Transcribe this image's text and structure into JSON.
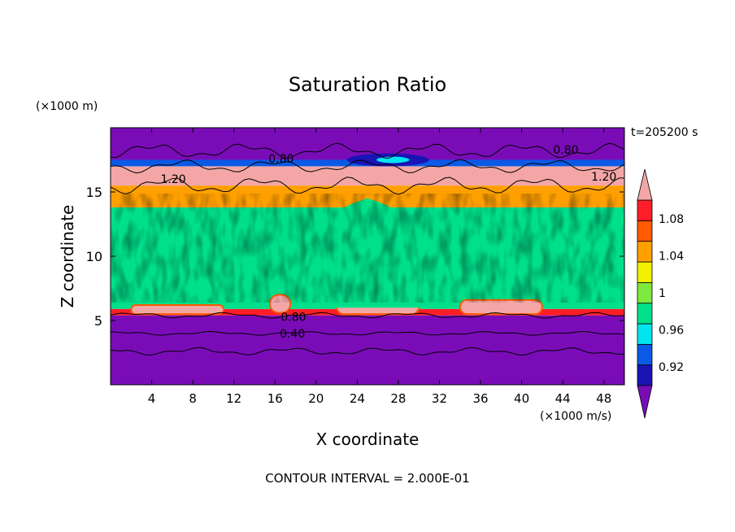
{
  "chart_data": {
    "type": "heatmap",
    "title": "Saturation Ratio",
    "xlabel": "X coordinate",
    "ylabel": "Z coordinate",
    "x_unit": "(×1000 m/s)",
    "y_unit": "(×1000 m)",
    "time_label": "t=205200 s",
    "footer": "CONTOUR INTERVAL = 2.000E-01",
    "xlim": [
      0,
      50
    ],
    "ylim": [
      0,
      20
    ],
    "x_ticks": [
      4,
      8,
      12,
      16,
      20,
      24,
      28,
      32,
      36,
      40,
      44,
      48
    ],
    "y_ticks": [
      5,
      10,
      15
    ],
    "colorbar": {
      "bounds": [
        0.9,
        0.92,
        0.94,
        0.96,
        0.98,
        1.0,
        1.02,
        1.04,
        1.06,
        1.08,
        1.1
      ],
      "colors": [
        "#7a0cb8",
        "#1a14b4",
        "#0a5ae6",
        "#00e6f0",
        "#00e08a",
        "#7ee83c",
        "#f2f200",
        "#ffa000",
        "#ff5a00",
        "#ff1e28",
        "#f4a6a6"
      ],
      "tick_labels": [
        {
          "value": 0.92,
          "label": "0.92"
        },
        {
          "value": 0.96,
          "label": "0.96"
        },
        {
          "value": 1.0,
          "label": "1"
        },
        {
          "value": 1.04,
          "label": "1.04"
        },
        {
          "value": 1.08,
          "label": "1.08"
        }
      ]
    },
    "contour_labels": [
      {
        "x": 16.6,
        "z": 17.6,
        "text": "0.80"
      },
      {
        "x": 44.3,
        "z": 18.3,
        "text": "0.80"
      },
      {
        "x": 6.1,
        "z": 16.0,
        "text": "1.20"
      },
      {
        "x": 48.0,
        "z": 16.2,
        "text": "1.20"
      },
      {
        "x": 17.8,
        "z": 5.3,
        "text": "0.80"
      },
      {
        "x": 17.7,
        "z": 4.0,
        "text": "0.40"
      }
    ],
    "bands": [
      {
        "z": [
          0,
          5.4
        ],
        "value": 0.8
      },
      {
        "z": [
          5.4,
          5.9
        ],
        "value": 1.08
      },
      {
        "z": [
          5.9,
          13.8
        ],
        "value": 0.99
      },
      {
        "z": [
          13.8,
          15.5
        ],
        "value": 1.04
      },
      {
        "z": [
          15.5,
          17.0
        ],
        "value": 1.2
      },
      {
        "z": [
          17.0,
          17.5
        ],
        "value": 0.95
      },
      {
        "z": [
          17.5,
          20
        ],
        "value": 0.8
      }
    ],
    "features": [
      {
        "name": "lens",
        "x": [
          2,
          11
        ],
        "z": [
          5.5,
          6.2
        ],
        "value": 1.2
      },
      {
        "name": "lens",
        "x": [
          22,
          30
        ],
        "z": [
          5.5,
          6.6
        ],
        "value": 1.2
      },
      {
        "name": "lens",
        "x": [
          34,
          42
        ],
        "z": [
          5.5,
          6.6
        ],
        "value": 1.2
      },
      {
        "name": "patch",
        "x": [
          15.5,
          17.5
        ],
        "z": [
          5.6,
          7.0
        ],
        "value": 1.2
      },
      {
        "name": "plume",
        "x": [
          18,
          32
        ],
        "z": [
          6.0,
          14.5
        ],
        "value": 0.98
      },
      {
        "name": "dry-patch",
        "x": [
          23,
          31
        ],
        "z": [
          17.0,
          18.0
        ],
        "value": 0.92
      }
    ]
  }
}
